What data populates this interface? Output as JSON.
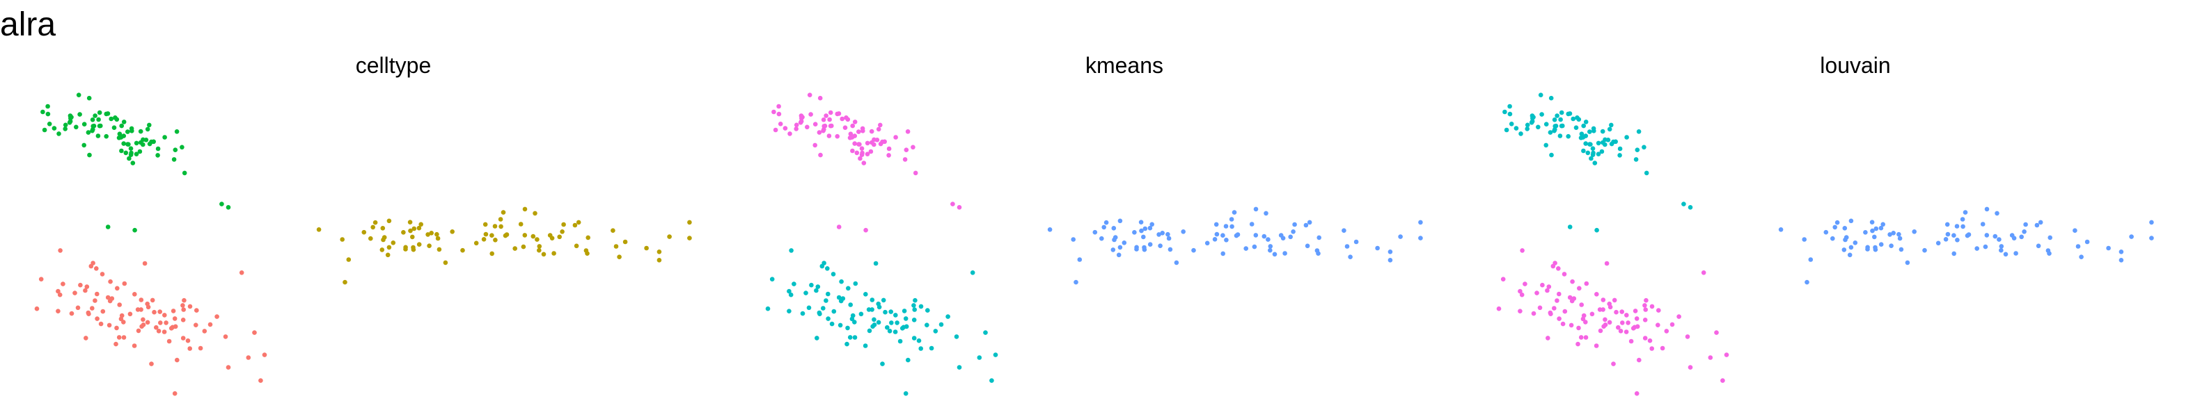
{
  "figure_title": "alra",
  "chart_data": [
    {
      "type": "scatter",
      "title": "celltype",
      "xlabel": "",
      "ylabel": "",
      "xlim": [
        0,
        1
      ],
      "ylim": [
        0,
        1
      ],
      "grid": false,
      "axes": false,
      "legend": "none",
      "groups": [
        {
          "color": "#00BA38",
          "center": [
            0.12,
            0.84
          ],
          "spread": [
            0.04,
            0.05
          ],
          "n": 80,
          "extra": [
            [
              0.29,
              0.62
            ],
            [
              0.3,
              0.61
            ],
            [
              0.12,
              0.55
            ],
            [
              0.16,
              0.54
            ]
          ]
        },
        {
          "color": "#F8766D",
          "center": [
            0.16,
            0.27
          ],
          "spread": [
            0.06,
            0.07
          ],
          "n": 90,
          "extra": [
            [
              0.33,
              0.15
            ],
            [
              0.22,
              0.04
            ],
            [
              0.32,
              0.41
            ],
            [
              0.3,
              0.12
            ]
          ]
        },
        {
          "color": "#B79F00",
          "center": [
            0.7,
            0.52
          ],
          "spread": [
            0.15,
            0.04
          ],
          "n": 80,
          "extra": [
            [
              0.48,
              0.45
            ],
            [
              0.53,
              0.48
            ],
            [
              0.96,
              0.52
            ]
          ]
        }
      ]
    },
    {
      "type": "scatter",
      "title": "kmeans",
      "xlabel": "",
      "ylabel": "",
      "xlim": [
        0,
        1
      ],
      "ylim": [
        0,
        1
      ],
      "grid": false,
      "axes": false,
      "legend": "none",
      "groups": [
        {
          "color": "#F564E3",
          "center": [
            0.12,
            0.84
          ],
          "spread": [
            0.04,
            0.05
          ],
          "n": 80,
          "extra": [
            [
              0.29,
              0.62
            ],
            [
              0.3,
              0.61
            ],
            [
              0.12,
              0.55
            ],
            [
              0.16,
              0.54
            ]
          ]
        },
        {
          "color": "#00BFC4",
          "center": [
            0.16,
            0.27
          ],
          "spread": [
            0.06,
            0.07
          ],
          "n": 90,
          "extra": [
            [
              0.33,
              0.15
            ],
            [
              0.22,
              0.04
            ],
            [
              0.32,
              0.41
            ],
            [
              0.3,
              0.12
            ]
          ]
        },
        {
          "color": "#619CFF",
          "center": [
            0.7,
            0.52
          ],
          "spread": [
            0.15,
            0.04
          ],
          "n": 80,
          "extra": [
            [
              0.48,
              0.45
            ],
            [
              0.53,
              0.48
            ],
            [
              0.96,
              0.52
            ]
          ]
        }
      ]
    },
    {
      "type": "scatter",
      "title": "louvain",
      "xlabel": "",
      "ylabel": "",
      "xlim": [
        0,
        1
      ],
      "ylim": [
        0,
        1
      ],
      "grid": false,
      "axes": false,
      "legend": "none",
      "groups": [
        {
          "color": "#00BFC4",
          "center": [
            0.12,
            0.84
          ],
          "spread": [
            0.04,
            0.05
          ],
          "n": 80,
          "extra": [
            [
              0.29,
              0.62
            ],
            [
              0.3,
              0.61
            ],
            [
              0.12,
              0.55
            ],
            [
              0.16,
              0.54
            ]
          ]
        },
        {
          "color": "#F564E3",
          "center": [
            0.16,
            0.27
          ],
          "spread": [
            0.06,
            0.07
          ],
          "n": 90,
          "extra": [
            [
              0.33,
              0.15
            ],
            [
              0.22,
              0.04
            ],
            [
              0.32,
              0.41
            ],
            [
              0.3,
              0.12
            ]
          ]
        },
        {
          "color": "#619CFF",
          "center": [
            0.7,
            0.52
          ],
          "spread": [
            0.15,
            0.04
          ],
          "n": 80,
          "extra": [
            [
              0.48,
              0.45
            ],
            [
              0.53,
              0.48
            ],
            [
              0.96,
              0.52
            ]
          ]
        }
      ]
    }
  ]
}
